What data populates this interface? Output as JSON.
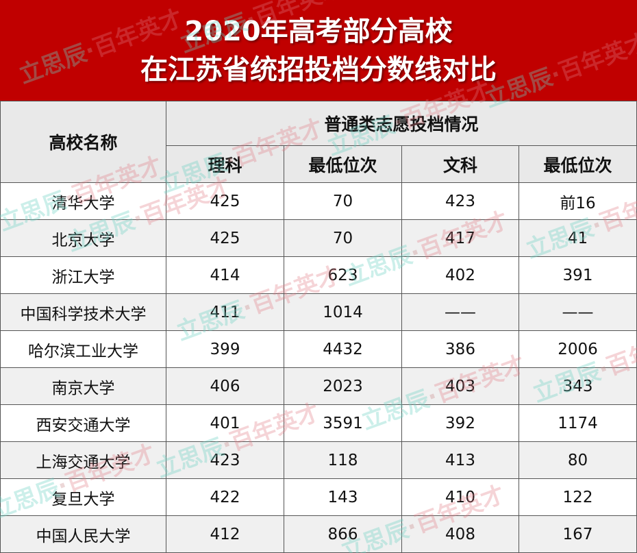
{
  "title": {
    "line1": "2020年高考部分高校",
    "line2": "在江苏省统招投档分数线对比"
  },
  "colors": {
    "title_bg": "#c00000",
    "header_bg": "#e9e9e9",
    "watermark_teal": "#6ed2c3",
    "watermark_pink": "#e17882"
  },
  "watermark": {
    "part1": "立思辰",
    "sep": "·",
    "part2": "百年英才"
  },
  "table": {
    "header_school": "高校名称",
    "header_group": "普通类志愿投档情况",
    "columns": [
      "理科",
      "最低位次",
      "文科",
      "最低位次"
    ],
    "rows": [
      {
        "school": "清华大学",
        "sci": "425",
        "sci_rank": "70",
        "arts": "423",
        "arts_rank": "前16"
      },
      {
        "school": "北京大学",
        "sci": "425",
        "sci_rank": "70",
        "arts": "417",
        "arts_rank": "41"
      },
      {
        "school": "浙江大学",
        "sci": "414",
        "sci_rank": "623",
        "arts": "402",
        "arts_rank": "391"
      },
      {
        "school": "中国科学技术大学",
        "sci": "411",
        "sci_rank": "1014",
        "arts": "——",
        "arts_rank": "——"
      },
      {
        "school": "哈尔滨工业大学",
        "sci": "399",
        "sci_rank": "4432",
        "arts": "386",
        "arts_rank": "2006"
      },
      {
        "school": "南京大学",
        "sci": "406",
        "sci_rank": "2023",
        "arts": "403",
        "arts_rank": "343"
      },
      {
        "school": "西安交通大学",
        "sci": "401",
        "sci_rank": "3591",
        "arts": "392",
        "arts_rank": "1174"
      },
      {
        "school": "上海交通大学",
        "sci": "423",
        "sci_rank": "118",
        "arts": "413",
        "arts_rank": "80"
      },
      {
        "school": "复旦大学",
        "sci": "422",
        "sci_rank": "143",
        "arts": "410",
        "arts_rank": "122"
      },
      {
        "school": "中国人民大学",
        "sci": "412",
        "sci_rank": "866",
        "arts": "408",
        "arts_rank": "167"
      }
    ]
  }
}
